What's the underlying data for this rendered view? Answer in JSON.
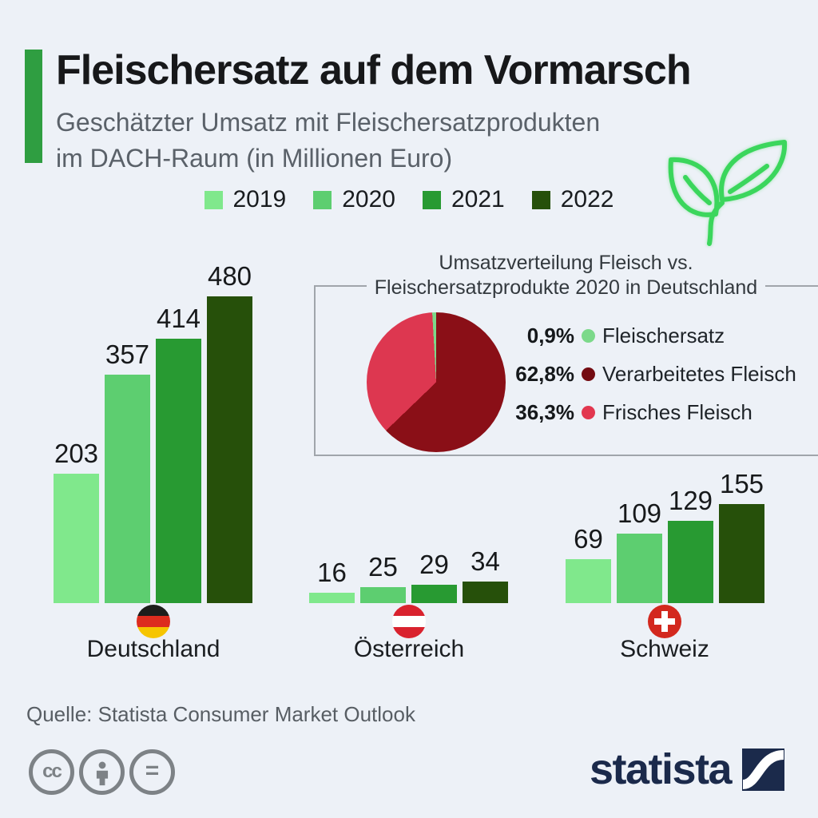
{
  "colors": {
    "bg": "#EDF1F7",
    "accent": "#2F9E41",
    "title_text": "#17181A",
    "subtitle_text": "#5A6169",
    "value_text": "#17191B",
    "box_border": "#A0A5AB",
    "source_text": "#585E64",
    "icon_gray": "#7D8286",
    "navy": "#1B2A4B",
    "plant": "#3BD65C"
  },
  "header": {
    "title": "Fleischersatz auf dem Vormarsch",
    "subtitle_line1": "Geschätzter Umsatz mit Fleischersatzprodukten",
    "subtitle_line2": "im DACH-Raum (in Millionen Euro)"
  },
  "year_legend": [
    {
      "label": "2019",
      "color": "#80E88C"
    },
    {
      "label": "2020",
      "color": "#5DCE70"
    },
    {
      "label": "2021",
      "color": "#289A32"
    },
    {
      "label": "2022",
      "color": "#26500A"
    }
  ],
  "chart_data": [
    {
      "type": "bar",
      "title": "Geschätzter Umsatz mit Fleischersatzprodukten im DACH-Raum (in Millionen Euro)",
      "unit": "Millionen Euro",
      "categories": [
        "2019",
        "2020",
        "2021",
        "2022"
      ],
      "series": [
        {
          "name": "Deutschland",
          "values": [
            203,
            357,
            414,
            480
          ]
        },
        {
          "name": "Österreich",
          "values": [
            16,
            25,
            29,
            34
          ]
        },
        {
          "name": "Schweiz",
          "values": [
            69,
            109,
            129,
            155
          ]
        }
      ],
      "value_labels": true,
      "legend_position": "top"
    },
    {
      "type": "pie",
      "title": "Umsatzverteilung Fleisch vs. Fleischersatzprodukte 2020 in Deutschland",
      "slices": [
        {
          "label": "Fleischersatz",
          "value_pct": 0.9,
          "display": "0,9%",
          "color": "#7CD98A",
          "dot_color": "#7CD98A"
        },
        {
          "label": "Verarbeitetes Fleisch",
          "value_pct": 62.8,
          "display": "62,8%",
          "color": "#8A0F17",
          "dot_color": "#740C12"
        },
        {
          "label": "Frisches Fleisch",
          "value_pct": 36.3,
          "display": "36,3%",
          "color": "#DD3750",
          "dot_color": "#E2374F"
        }
      ],
      "draw_order": [
        1,
        2,
        0
      ],
      "start_angle_deg": 0
    }
  ],
  "inset": {
    "title_line1": "Umsatzverteilung Fleisch vs.",
    "title_line2": "Fleischersatzprodukte 2020 in Deutschland"
  },
  "flags": [
    {
      "country": "Deutschland",
      "type": "stripes",
      "colors": [
        "#1D1D1B",
        "#DD2C1E",
        "#F6C500"
      ]
    },
    {
      "country": "Österreich",
      "type": "stripes",
      "colors": [
        "#D9222E",
        "#FFFFFF",
        "#D9222E"
      ]
    },
    {
      "country": "Schweiz",
      "type": "cross",
      "colors": [
        "#D3281E",
        "#FFFFFF"
      ]
    }
  ],
  "footer": {
    "source": "Quelle: Statista Consumer Market Outlook",
    "logo_text": "statista"
  }
}
